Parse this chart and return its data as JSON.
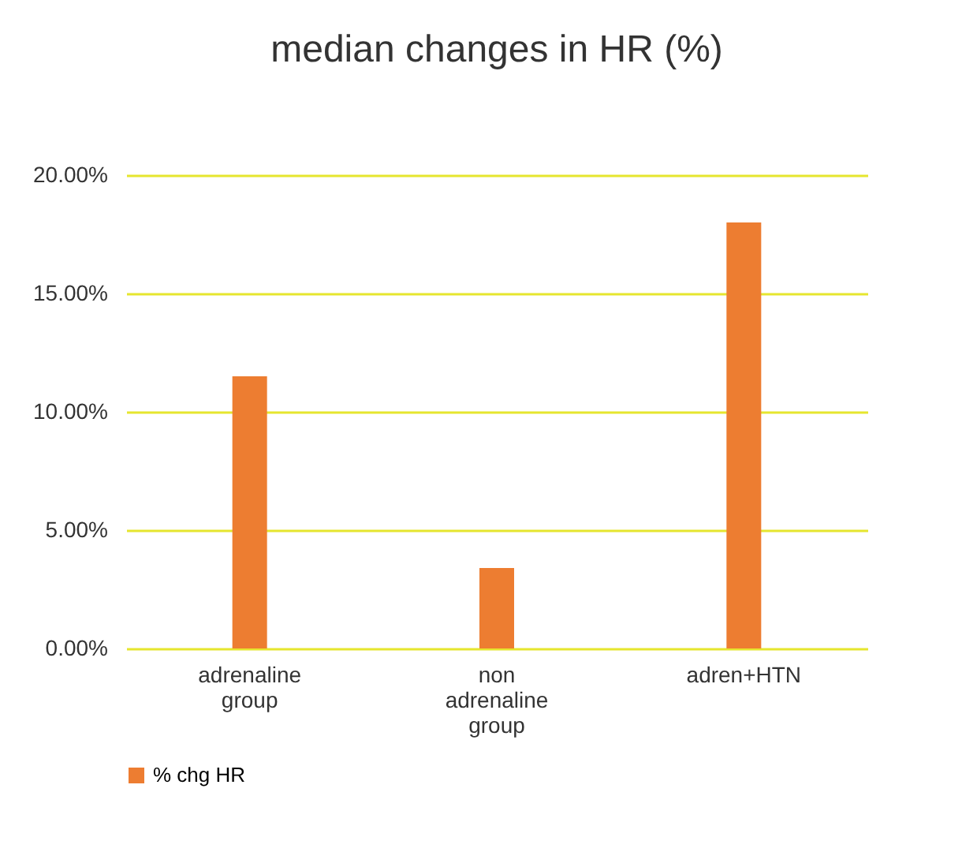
{
  "chart_data": {
    "type": "bar",
    "title": "median changes in HR (%)",
    "categories": [
      "adrenaline group",
      "non adrenaline group",
      "adren+HTN"
    ],
    "series": [
      {
        "name": "% chg HR",
        "color": "#ed7d31",
        "values": [
          11.5,
          3.4,
          18.0
        ]
      }
    ],
    "ylim": [
      0,
      20
    ],
    "yticks": [
      {
        "value": 0,
        "label": "0.00%"
      },
      {
        "value": 5,
        "label": "5.00%"
      },
      {
        "value": 10,
        "label": "10.00%"
      },
      {
        "value": 15,
        "label": "15.00%"
      },
      {
        "value": 20,
        "label": "20.00%"
      }
    ],
    "grid": "y",
    "legend": "bottom"
  }
}
